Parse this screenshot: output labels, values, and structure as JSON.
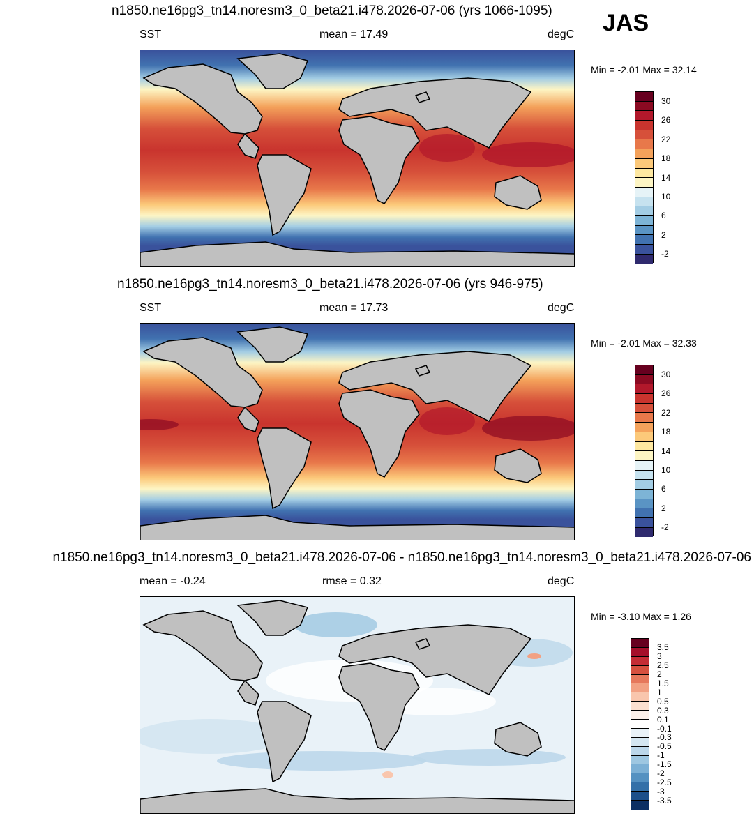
{
  "season": "JAS",
  "panels": [
    {
      "title": "n1850.ne16pg3_tn14.noresm3_0_beta21.i478.2026-07-06 (yrs 1066-1095)",
      "left_label": "SST",
      "center_label": "mean =  17.49",
      "right_label": "degC",
      "minmax": "Min =  -2.01 Max =  32.14",
      "colorbar_ticks": [
        "30",
        "26",
        "22",
        "18",
        "14",
        "10",
        "6",
        "2",
        "-2"
      ]
    },
    {
      "title": "n1850.ne16pg3_tn14.noresm3_0_beta21.i478.2026-07-06 (yrs 946-975)",
      "left_label": "SST",
      "center_label": "mean =  17.73",
      "right_label": "degC",
      "minmax": "Min =  -2.01 Max =  32.33",
      "colorbar_ticks": [
        "30",
        "26",
        "22",
        "18",
        "14",
        "10",
        "6",
        "2",
        "-2"
      ]
    },
    {
      "title": "n1850.ne16pg3_tn14.noresm3_0_beta21.i478.2026-07-06 - n1850.ne16pg3_tn14.noresm3_0_beta21.i478.2026-07-06",
      "left_label": "mean =  -0.24",
      "center_label": "rmse =   0.32",
      "right_label": "degC",
      "minmax": "Min =  -3.10 Max =   1.26",
      "colorbar_ticks": [
        "3.5",
        "3",
        "2.5",
        "2",
        "1.5",
        "1",
        "0.5",
        "0.3",
        "0.1",
        "-0.1",
        "-0.3",
        "-0.5",
        "-1",
        "-1.5",
        "-2",
        "-2.5",
        "-3",
        "-3.5"
      ]
    }
  ],
  "colors": {
    "sst_scale": [
      "#67001f",
      "#8b0a22",
      "#b2182b",
      "#c9342e",
      "#d6503a",
      "#e8784a",
      "#f4a25b",
      "#fcc97a",
      "#fee8a1",
      "#fdf5c4",
      "#e6f3f7",
      "#c6e2ef",
      "#a3cde4",
      "#7db4d6",
      "#5a94c4",
      "#4172b0",
      "#3a529c",
      "#2f2a6e"
    ],
    "diff_scale": [
      "#67001f",
      "#a50f2a",
      "#c42c35",
      "#d6503f",
      "#e6785c",
      "#f2a183",
      "#f9c6ad",
      "#fce0d0",
      "#fdf1ea",
      "#ffffff",
      "#e9f2f8",
      "#d4e6f1",
      "#bcd7ea",
      "#9ec7e1",
      "#7cb0d5",
      "#5491c1",
      "#3370a8",
      "#1c4f8a",
      "#0b2f63"
    ],
    "land": "#c0c0c0"
  }
}
